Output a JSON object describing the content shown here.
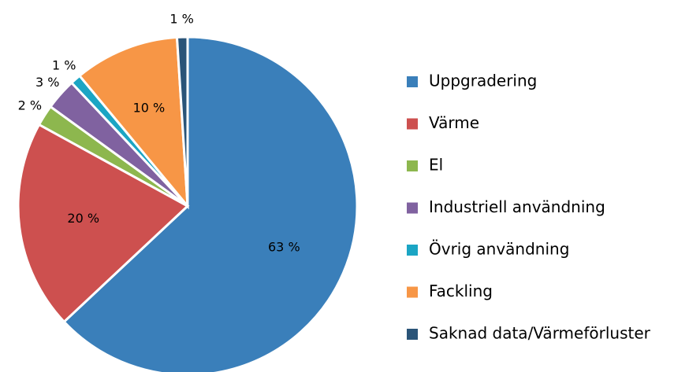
{
  "chart_data": {
    "type": "pie",
    "categories": [
      "Uppgradering",
      "Värme",
      "El",
      "Industriell användning",
      "Övrig användning",
      "Fackling",
      "Saknad data/Värmeförluster"
    ],
    "values": [
      63,
      20,
      2,
      3,
      1,
      10,
      1
    ],
    "value_labels": [
      "63 %",
      "20 %",
      "2 %",
      "3 %",
      "1 %",
      "10 %",
      "1 %"
    ],
    "colors": [
      "#3a7fba",
      "#cd504f",
      "#8db74e",
      "#8062a0",
      "#1ba5c4",
      "#f79646",
      "#2a5478"
    ],
    "legend": "right"
  }
}
